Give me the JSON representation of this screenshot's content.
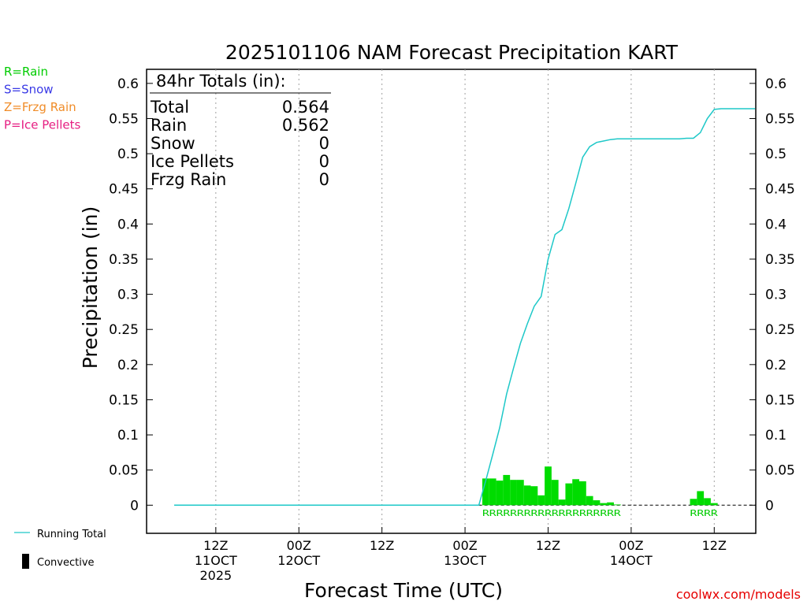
{
  "chart_data": {
    "type": "bar",
    "title": "2025101106 NAM Forecast Precipitation KART",
    "xlabel": "Forecast Time (UTC)",
    "ylabel": "Precipitation (in)",
    "ylim": [
      -0.04,
      0.62
    ],
    "yticks": [
      "0",
      "0.05",
      "0.1",
      "0.15",
      "0.2",
      "0.25",
      "0.3",
      "0.35",
      "0.4",
      "0.45",
      "0.5",
      "0.55",
      "0.6"
    ],
    "xlim_hours": [
      -4,
      84
    ],
    "xticks": [
      {
        "hour": 6,
        "lines": [
          "12Z",
          "11OCT",
          "2025"
        ]
      },
      {
        "hour": 18,
        "lines": [
          "00Z",
          "12OCT"
        ]
      },
      {
        "hour": 30,
        "lines": [
          "12Z"
        ]
      },
      {
        "hour": 42,
        "lines": [
          "00Z",
          "13OCT"
        ]
      },
      {
        "hour": 54,
        "lines": [
          "12Z"
        ]
      },
      {
        "hour": 66,
        "lines": [
          "00Z",
          "14OCT"
        ]
      },
      {
        "hour": 78,
        "lines": [
          "12Z"
        ]
      }
    ],
    "bar_hours": [
      45,
      46,
      47,
      48,
      49,
      50,
      51,
      52,
      53,
      54,
      55,
      56,
      57,
      58,
      59,
      60,
      61,
      62,
      63,
      64,
      75,
      76,
      77,
      78
    ],
    "bar_values": [
      0.038,
      0.038,
      0.035,
      0.043,
      0.036,
      0.036,
      0.028,
      0.027,
      0.014,
      0.055,
      0.036,
      0.008,
      0.031,
      0.037,
      0.034,
      0.013,
      0.007,
      0.003,
      0.004,
      0.001,
      0.009,
      0.02,
      0.01,
      0.003
    ],
    "running_total": {
      "name": "Running Total",
      "hours": [
        0,
        44,
        45,
        46,
        47,
        48,
        49,
        50,
        51,
        52,
        53,
        54,
        55,
        56,
        57,
        58,
        59,
        60,
        61,
        62,
        63,
        64,
        67,
        70,
        72,
        73,
        74,
        75,
        76,
        77,
        78,
        79,
        80,
        81,
        83.9
      ],
      "values": [
        0,
        0,
        0.035,
        0.072,
        0.11,
        0.158,
        0.195,
        0.23,
        0.258,
        0.283,
        0.297,
        0.35,
        0.385,
        0.392,
        0.422,
        0.458,
        0.495,
        0.51,
        0.516,
        0.518,
        0.52,
        0.521,
        0.521,
        0.521,
        0.521,
        0.521,
        0.522,
        0.522,
        0.53,
        0.55,
        0.563,
        0.564,
        0.564,
        0.564,
        0.564
      ]
    },
    "ptype_labels": [
      {
        "text": "RRRRRRRRRRRRRRRRRRRR",
        "start_hour": 45,
        "end_hour": 64
      },
      {
        "text": "RRRR",
        "start_hour": 75,
        "end_hour": 78
      }
    ],
    "totals_box": {
      "heading": "84hr Totals (in):",
      "rows": [
        {
          "label": "Total",
          "value": "0.564"
        },
        {
          "label": "Rain",
          "value": "0.562"
        },
        {
          "label": "Snow",
          "value": "0"
        },
        {
          "label": "Ice Pellets",
          "value": "0"
        },
        {
          "label": "Frzg Rain",
          "value": "0"
        }
      ]
    },
    "type_legend": [
      {
        "text": "R=Rain",
        "color": "#00cc00"
      },
      {
        "text": "S=Snow",
        "color": "#3a3ae6"
      },
      {
        "text": "Z=Frzg Rain",
        "color": "#f08c28"
      },
      {
        "text": "P=Ice Pellets",
        "color": "#e61e82"
      }
    ],
    "series_legend": [
      {
        "text": "Running Total",
        "color": "#1ec8c8"
      },
      {
        "text": "Convective",
        "color": "#000000"
      }
    ],
    "grid": "vertical dotted at x ticks"
  },
  "colors": {
    "bar": "#00dc00",
    "line": "#1ec8c8",
    "ptype_text": "#00cc00",
    "credit": "#e60000",
    "grid": "#a0a0a0"
  },
  "credit": "coolwx.com/models"
}
